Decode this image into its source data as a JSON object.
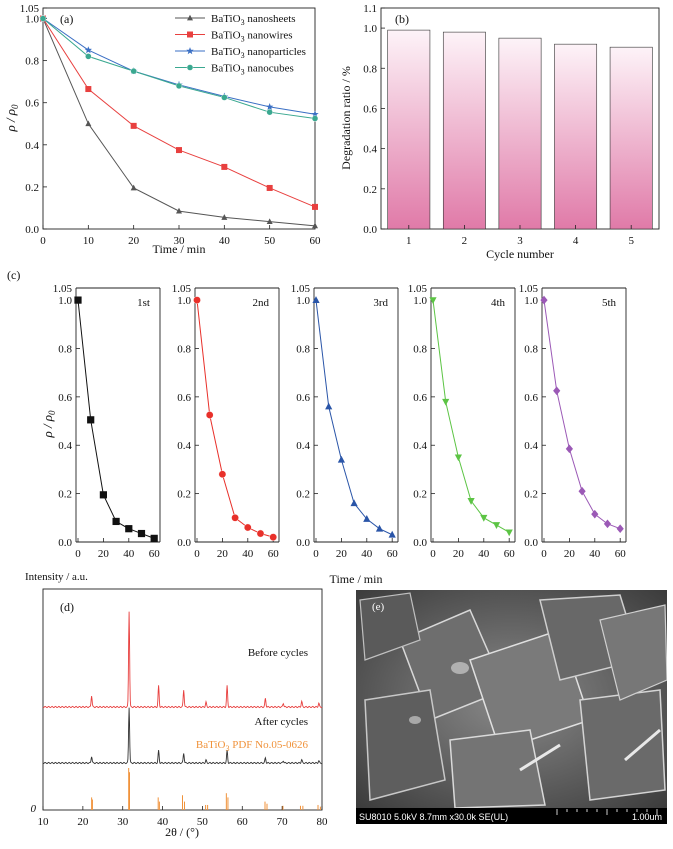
{
  "chart_data": [
    {
      "id": "a",
      "type": "line",
      "panel_label": "(a)",
      "xlabel": "Time / min",
      "ylabel_main": "ρ / ρ",
      "ylabel_sub": "0",
      "xlim": [
        0,
        60
      ],
      "ylim": [
        0,
        1.05
      ],
      "xticks": [
        "0",
        "10",
        "20",
        "30",
        "40",
        "50",
        "60"
      ],
      "yticks": [
        "0.0",
        "0.2",
        "0.4",
        "0.6",
        "0.8",
        "1.0",
        "1.05"
      ],
      "x": [
        0,
        10,
        20,
        30,
        40,
        50,
        60
      ],
      "legend_position": "top-right",
      "series": [
        {
          "name_pre": "BaTiO",
          "name_sub": "3",
          "name_post": " nanosheets",
          "marker": "triangle",
          "color": "#555555",
          "values": [
            1.0,
            0.5,
            0.195,
            0.085,
            0.055,
            0.035,
            0.015
          ]
        },
        {
          "name_pre": "BaTiO",
          "name_sub": "3",
          "name_post": " nanowires",
          "marker": "square",
          "color": "#e8403f",
          "values": [
            1.0,
            0.665,
            0.49,
            0.375,
            0.295,
            0.195,
            0.105
          ]
        },
        {
          "name_pre": "BaTiO",
          "name_sub": "3",
          "name_post": " nanoparticles",
          "marker": "star",
          "color": "#3a6fc4",
          "values": [
            1.0,
            0.85,
            0.75,
            0.685,
            0.63,
            0.58,
            0.545
          ]
        },
        {
          "name_pre": "BaTiO",
          "name_sub": "3",
          "name_post": " nanocubes",
          "marker": "circle",
          "color": "#3aa890",
          "values": [
            1.0,
            0.82,
            0.75,
            0.68,
            0.625,
            0.555,
            0.525
          ]
        }
      ]
    },
    {
      "id": "b",
      "type": "bar",
      "panel_label": "(b)",
      "xlabel": "Cycle number",
      "ylabel": "Degradation ratio / %",
      "ylim": [
        0,
        1.1
      ],
      "yticks": [
        "0.0",
        "0.2",
        "0.4",
        "0.6",
        "0.8",
        "1.0",
        "1.1"
      ],
      "categories": [
        "1",
        "2",
        "3",
        "4",
        "5"
      ],
      "values": [
        0.99,
        0.98,
        0.95,
        0.92,
        0.905
      ],
      "bar_color_top": "#fdf3f8",
      "bar_color_bottom": "#e07aa8"
    },
    {
      "id": "c",
      "type": "line",
      "panel_label": "(c)",
      "xlabel": "Time / min",
      "ylabel_main": "ρ / ρ",
      "ylabel_sub": "0",
      "ylim": [
        0,
        1.05
      ],
      "yticks": [
        "0.0",
        "0.2",
        "0.4",
        "0.6",
        "0.8",
        "1.0",
        "1.05"
      ],
      "x": [
        0,
        10,
        20,
        30,
        40,
        50,
        60
      ],
      "subplots": [
        {
          "label": "1st",
          "marker": "square",
          "color": "#111111",
          "xticks": [
            "0",
            "20",
            "40",
            "60"
          ],
          "values": [
            1.0,
            0.505,
            0.195,
            0.085,
            0.055,
            0.035,
            0.015
          ]
        },
        {
          "label": "2nd",
          "marker": "circle",
          "color": "#e8302a",
          "xticks": [
            "0",
            "20",
            "40",
            "60"
          ],
          "values": [
            1.0,
            0.525,
            0.28,
            0.1,
            0.06,
            0.035,
            0.02
          ]
        },
        {
          "label": "3rd",
          "marker": "triangle",
          "color": "#2a55a8",
          "xticks": [
            "0",
            "20",
            "40",
            "60"
          ],
          "values": [
            1.0,
            0.56,
            0.34,
            0.16,
            0.095,
            0.055,
            0.03
          ]
        },
        {
          "label": "4th",
          "marker": "triangle-down",
          "color": "#5cc444",
          "xticks": [
            "0",
            "20",
            "40",
            "60"
          ],
          "values": [
            1.0,
            0.58,
            0.35,
            0.17,
            0.1,
            0.07,
            0.04
          ]
        },
        {
          "label": "5th",
          "marker": "diamond",
          "color": "#9b59b6",
          "xticks": [
            "0",
            "20",
            "40",
            "60"
          ],
          "values": [
            1.0,
            0.625,
            0.385,
            0.21,
            0.115,
            0.075,
            0.055
          ]
        }
      ]
    },
    {
      "id": "d",
      "type": "line",
      "panel_label": "(d)",
      "ylabel": "Intensity / a.u.",
      "xlabel_main": "2θ / (°)",
      "xlim": [
        10,
        80
      ],
      "xticks": [
        "10",
        "20",
        "30",
        "40",
        "50",
        "60",
        "70",
        "80"
      ],
      "y_zero_label": "0",
      "peaks": [
        {
          "pos": 22.2,
          "h": 0.12
        },
        {
          "pos": 31.6,
          "h": 1.0
        },
        {
          "pos": 39.0,
          "h": 0.22
        },
        {
          "pos": 45.3,
          "h": 0.18
        },
        {
          "pos": 50.9,
          "h": 0.05
        },
        {
          "pos": 56.2,
          "h": 0.22
        },
        {
          "pos": 65.8,
          "h": 0.09
        },
        {
          "pos": 70.3,
          "h": 0.04
        },
        {
          "pos": 74.9,
          "h": 0.06
        },
        {
          "pos": 79.2,
          "h": 0.04
        }
      ],
      "series": [
        {
          "name": "Before cycles",
          "color": "#e8403f"
        },
        {
          "name": "After cycles",
          "color": "#333333"
        }
      ],
      "reference": {
        "name_pre": "BaTiO",
        "name_sub": "3",
        "name_post": " PDF No.05-0626",
        "color": "#f0923a",
        "lines": [
          {
            "pos": 22.2,
            "h": 0.3
          },
          {
            "pos": 22.4,
            "h": 0.25
          },
          {
            "pos": 31.5,
            "h": 1.0
          },
          {
            "pos": 31.7,
            "h": 0.9
          },
          {
            "pos": 38.9,
            "h": 0.3
          },
          {
            "pos": 39.2,
            "h": 0.2
          },
          {
            "pos": 45.0,
            "h": 0.35
          },
          {
            "pos": 45.5,
            "h": 0.2
          },
          {
            "pos": 50.8,
            "h": 0.12
          },
          {
            "pos": 51.3,
            "h": 0.12
          },
          {
            "pos": 56.0,
            "h": 0.4
          },
          {
            "pos": 56.4,
            "h": 0.3
          },
          {
            "pos": 65.7,
            "h": 0.2
          },
          {
            "pos": 66.2,
            "h": 0.15
          },
          {
            "pos": 70.2,
            "h": 0.1
          },
          {
            "pos": 74.6,
            "h": 0.1
          },
          {
            "pos": 75.2,
            "h": 0.1
          },
          {
            "pos": 79.0,
            "h": 0.12
          },
          {
            "pos": 79.6,
            "h": 0.08
          }
        ]
      }
    }
  ],
  "sem": {
    "panel_label": "(e)",
    "info": "SU8010 5.0kV 8.7mm x30.0k SE(UL)",
    "scale": "1.00um"
  }
}
